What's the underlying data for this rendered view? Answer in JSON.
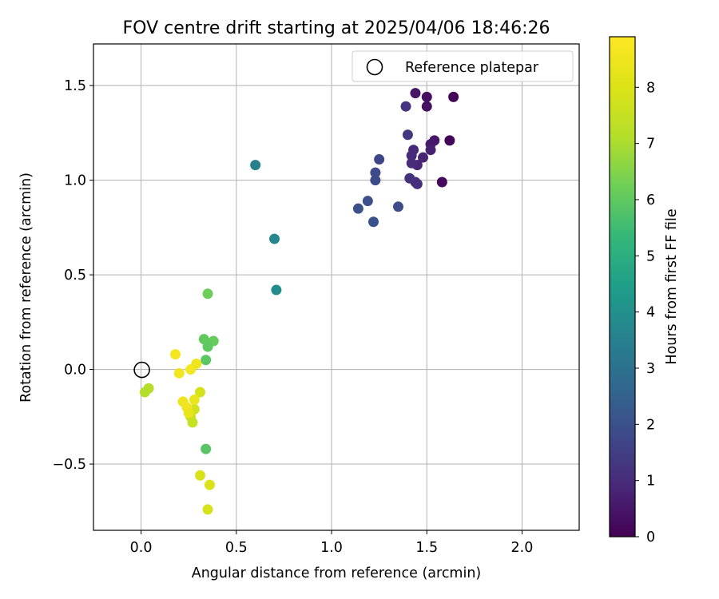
{
  "chart_data": {
    "type": "scatter",
    "title": "FOV centre drift starting at 2025/04/06 18:46:26",
    "xlabel": "Angular distance from reference (arcmin)",
    "ylabel": "Rotation from reference (arcmin)",
    "xlim": [
      -0.25,
      2.3
    ],
    "ylim": [
      -0.85,
      1.72
    ],
    "xticks": [
      "0.0",
      "0.5",
      "1.0",
      "1.5",
      "2.0"
    ],
    "yticks": [
      "−0.5",
      "0.0",
      "0.5",
      "1.0",
      "1.5"
    ],
    "grid": true,
    "legend": {
      "placement": "top-right",
      "entries": [
        "Reference platepar"
      ]
    },
    "reference_point": {
      "x": 0.0,
      "y": 0.0,
      "label": "Reference platepar"
    },
    "colorbar": {
      "label": "Hours from first FF file",
      "range": [
        0,
        8.9
      ],
      "ticks": [
        "0",
        "1",
        "2",
        "3",
        "4",
        "5",
        "6",
        "7",
        "8"
      ],
      "colormap": "viridis"
    },
    "points": [
      {
        "x": 1.64,
        "y": 1.44,
        "hours": 0.05
      },
      {
        "x": 1.62,
        "y": 1.21,
        "hours": 0.1
      },
      {
        "x": 1.58,
        "y": 0.99,
        "hours": 0.2
      },
      {
        "x": 1.5,
        "y": 1.44,
        "hours": 0.3
      },
      {
        "x": 1.5,
        "y": 1.39,
        "hours": 0.35
      },
      {
        "x": 1.44,
        "y": 1.46,
        "hours": 0.45
      },
      {
        "x": 1.54,
        "y": 1.21,
        "hours": 0.5
      },
      {
        "x": 1.52,
        "y": 1.19,
        "hours": 0.6
      },
      {
        "x": 1.52,
        "y": 1.16,
        "hours": 0.7
      },
      {
        "x": 1.48,
        "y": 1.12,
        "hours": 0.8
      },
      {
        "x": 1.45,
        "y": 1.08,
        "hours": 0.85
      },
      {
        "x": 1.43,
        "y": 1.16,
        "hours": 0.9
      },
      {
        "x": 1.42,
        "y": 1.13,
        "hours": 0.95
      },
      {
        "x": 1.42,
        "y": 1.09,
        "hours": 1.0
      },
      {
        "x": 1.44,
        "y": 0.99,
        "hours": 1.05
      },
      {
        "x": 1.45,
        "y": 0.98,
        "hours": 1.1
      },
      {
        "x": 1.41,
        "y": 1.01,
        "hours": 1.15
      },
      {
        "x": 1.39,
        "y": 1.39,
        "hours": 1.2
      },
      {
        "x": 1.4,
        "y": 1.24,
        "hours": 1.3
      },
      {
        "x": 1.25,
        "y": 1.11,
        "hours": 1.7
      },
      {
        "x": 1.23,
        "y": 1.04,
        "hours": 1.8
      },
      {
        "x": 1.23,
        "y": 1.0,
        "hours": 1.85
      },
      {
        "x": 1.35,
        "y": 0.86,
        "hours": 1.9
      },
      {
        "x": 1.19,
        "y": 0.89,
        "hours": 1.95
      },
      {
        "x": 1.14,
        "y": 0.85,
        "hours": 2.0
      },
      {
        "x": 1.22,
        "y": 0.78,
        "hours": 2.05
      },
      {
        "x": 0.6,
        "y": 1.08,
        "hours": 3.5
      },
      {
        "x": 0.7,
        "y": 0.69,
        "hours": 3.7
      },
      {
        "x": 0.71,
        "y": 0.42,
        "hours": 3.9
      },
      {
        "x": 0.35,
        "y": 0.4,
        "hours": 6.2
      },
      {
        "x": 0.38,
        "y": 0.15,
        "hours": 6.1
      },
      {
        "x": 0.33,
        "y": 0.16,
        "hours": 6.05
      },
      {
        "x": 0.35,
        "y": 0.12,
        "hours": 6.0
      },
      {
        "x": 0.34,
        "y": 0.05,
        "hours": 5.95
      },
      {
        "x": 0.34,
        "y": -0.42,
        "hours": 5.9
      },
      {
        "x": 0.04,
        "y": -0.1,
        "hours": 7.2
      },
      {
        "x": 0.02,
        "y": -0.12,
        "hours": 7.1
      },
      {
        "x": 0.31,
        "y": -0.12,
        "hours": 7.8
      },
      {
        "x": 0.28,
        "y": -0.21,
        "hours": 7.7
      },
      {
        "x": 0.26,
        "y": -0.25,
        "hours": 7.6
      },
      {
        "x": 0.27,
        "y": -0.28,
        "hours": 7.5
      },
      {
        "x": 0.31,
        "y": -0.56,
        "hours": 7.9
      },
      {
        "x": 0.36,
        "y": -0.61,
        "hours": 7.95
      },
      {
        "x": 0.35,
        "y": -0.74,
        "hours": 7.85
      },
      {
        "x": 0.18,
        "y": 0.08,
        "hours": 8.7
      },
      {
        "x": 0.2,
        "y": -0.02,
        "hours": 8.6
      },
      {
        "x": 0.26,
        "y": 0.0,
        "hours": 8.65
      },
      {
        "x": 0.29,
        "y": 0.03,
        "hours": 8.5
      },
      {
        "x": 0.22,
        "y": -0.17,
        "hours": 8.45
      },
      {
        "x": 0.28,
        "y": -0.16,
        "hours": 8.4
      },
      {
        "x": 0.24,
        "y": -0.2,
        "hours": 8.55
      },
      {
        "x": 0.25,
        "y": -0.23,
        "hours": 8.35
      }
    ]
  }
}
